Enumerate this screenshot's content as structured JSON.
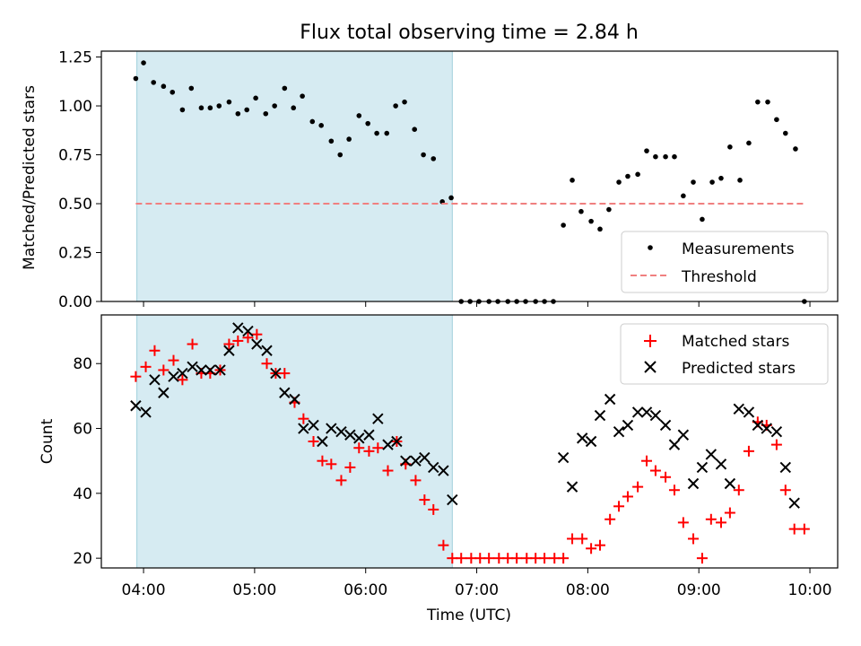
{
  "chart_data": {
    "type": "scatter",
    "title": "Flux total observing time = 2.84 h",
    "xlabel": "Time (UTC)",
    "x_tick_labels": [
      "04:00",
      "05:00",
      "06:00",
      "07:00",
      "08:00",
      "09:00",
      "10:00"
    ],
    "x_tick_values": [
      4.0,
      5.0,
      6.0,
      7.0,
      8.0,
      9.0,
      10.0
    ],
    "xlim": [
      3.62,
      10.25
    ],
    "shaded_interval": [
      3.94,
      6.78
    ],
    "shaded_color": "#add8e6",
    "top": {
      "ylabel": "Matched/Predicted stars",
      "ylim": [
        0.0,
        1.28
      ],
      "y_tick_labels": [
        "0.00",
        "0.25",
        "0.50",
        "0.75",
        "1.00",
        "1.25"
      ],
      "y_tick_values": [
        0.0,
        0.25,
        0.5,
        0.75,
        1.0,
        1.25
      ],
      "legend": {
        "position": "lower right",
        "entries": [
          "Measurements",
          "Threshold"
        ]
      },
      "series": [
        {
          "name": "Measurements",
          "color": "#000000",
          "marker": "dot",
          "points": [
            [
              3.93,
              1.14
            ],
            [
              4.0,
              1.22
            ],
            [
              4.09,
              1.12
            ],
            [
              4.18,
              1.1
            ],
            [
              4.26,
              1.07
            ],
            [
              4.35,
              0.98
            ],
            [
              4.43,
              1.09
            ],
            [
              4.52,
              0.99
            ],
            [
              4.6,
              0.99
            ],
            [
              4.68,
              1.0
            ],
            [
              4.77,
              1.02
            ],
            [
              4.85,
              0.96
            ],
            [
              4.93,
              0.98
            ],
            [
              5.01,
              1.04
            ],
            [
              5.1,
              0.96
            ],
            [
              5.18,
              1.0
            ],
            [
              5.27,
              1.09
            ],
            [
              5.35,
              0.99
            ],
            [
              5.43,
              1.05
            ],
            [
              5.52,
              0.92
            ],
            [
              5.6,
              0.9
            ],
            [
              5.69,
              0.82
            ],
            [
              5.77,
              0.75
            ],
            [
              5.85,
              0.83
            ],
            [
              5.94,
              0.95
            ],
            [
              6.02,
              0.91
            ],
            [
              6.1,
              0.86
            ],
            [
              6.19,
              0.86
            ],
            [
              6.27,
              1.0
            ],
            [
              6.35,
              1.02
            ],
            [
              6.44,
              0.88
            ],
            [
              6.52,
              0.75
            ],
            [
              6.61,
              0.73
            ],
            [
              6.69,
              0.51
            ],
            [
              6.77,
              0.53
            ],
            [
              6.86,
              0.0
            ],
            [
              6.94,
              0.0
            ],
            [
              7.02,
              0.0
            ],
            [
              7.11,
              0.0
            ],
            [
              7.19,
              0.0
            ],
            [
              7.28,
              0.0
            ],
            [
              7.36,
              0.0
            ],
            [
              7.44,
              0.0
            ],
            [
              7.53,
              0.0
            ],
            [
              7.61,
              0.0
            ],
            [
              7.69,
              0.0
            ],
            [
              7.78,
              0.39
            ],
            [
              7.86,
              0.62
            ],
            [
              7.94,
              0.46
            ],
            [
              8.03,
              0.41
            ],
            [
              8.11,
              0.37
            ],
            [
              8.19,
              0.47
            ],
            [
              8.28,
              0.61
            ],
            [
              8.36,
              0.64
            ],
            [
              8.45,
              0.65
            ],
            [
              8.53,
              0.77
            ],
            [
              8.61,
              0.74
            ],
            [
              8.7,
              0.74
            ],
            [
              8.78,
              0.74
            ],
            [
              8.86,
              0.54
            ],
            [
              8.95,
              0.61
            ],
            [
              9.03,
              0.42
            ],
            [
              9.12,
              0.61
            ],
            [
              9.2,
              0.63
            ],
            [
              9.28,
              0.79
            ],
            [
              9.37,
              0.62
            ],
            [
              9.45,
              0.81
            ],
            [
              9.53,
              1.02
            ],
            [
              9.62,
              1.02
            ],
            [
              9.7,
              0.93
            ],
            [
              9.78,
              0.86
            ],
            [
              9.87,
              0.78
            ],
            [
              9.95,
              0.0
            ]
          ]
        },
        {
          "name": "Threshold",
          "color": "#f08080",
          "style": "dashed",
          "x": [
            3.93,
            9.95
          ],
          "y": [
            0.5,
            0.5
          ]
        }
      ]
    },
    "bottom": {
      "ylabel": "Count",
      "ylim": [
        17.0,
        95.0
      ],
      "y_tick_labels": [
        "20",
        "40",
        "60",
        "80"
      ],
      "y_tick_values": [
        20,
        40,
        60,
        80
      ],
      "legend": {
        "position": "upper right",
        "entries": [
          "Matched stars",
          "Predicted stars"
        ]
      },
      "series": [
        {
          "name": "Matched stars",
          "color": "#ff0000",
          "marker": "plus",
          "points": [
            [
              3.93,
              76
            ],
            [
              4.02,
              79
            ],
            [
              4.1,
              84
            ],
            [
              4.18,
              78
            ],
            [
              4.27,
              81
            ],
            [
              4.35,
              75
            ],
            [
              4.44,
              86
            ],
            [
              4.52,
              77
            ],
            [
              4.6,
              77
            ],
            [
              4.69,
              78
            ],
            [
              4.77,
              86
            ],
            [
              4.85,
              87
            ],
            [
              4.94,
              88
            ],
            [
              5.02,
              89
            ],
            [
              5.11,
              80
            ],
            [
              5.19,
              77
            ],
            [
              5.27,
              77
            ],
            [
              5.36,
              68
            ],
            [
              5.44,
              63
            ],
            [
              5.53,
              56
            ],
            [
              5.61,
              50
            ],
            [
              5.69,
              49
            ],
            [
              5.78,
              44
            ],
            [
              5.86,
              48
            ],
            [
              5.94,
              54
            ],
            [
              6.03,
              53
            ],
            [
              6.11,
              54
            ],
            [
              6.2,
              47
            ],
            [
              6.28,
              56
            ],
            [
              6.36,
              49
            ],
            [
              6.45,
              44
            ],
            [
              6.53,
              38
            ],
            [
              6.61,
              35
            ],
            [
              6.7,
              24
            ],
            [
              6.78,
              20
            ],
            [
              6.86,
              20
            ],
            [
              6.95,
              20
            ],
            [
              7.03,
              20
            ],
            [
              7.11,
              20
            ],
            [
              7.2,
              20
            ],
            [
              7.28,
              20
            ],
            [
              7.36,
              20
            ],
            [
              7.45,
              20
            ],
            [
              7.53,
              20
            ],
            [
              7.61,
              20
            ],
            [
              7.7,
              20
            ],
            [
              7.78,
              20
            ],
            [
              7.86,
              26
            ],
            [
              7.95,
              26
            ],
            [
              8.03,
              23
            ],
            [
              8.11,
              24
            ],
            [
              8.2,
              32
            ],
            [
              8.28,
              36
            ],
            [
              8.36,
              39
            ],
            [
              8.45,
              42
            ],
            [
              8.53,
              50
            ],
            [
              8.61,
              47
            ],
            [
              8.7,
              45
            ],
            [
              8.78,
              41
            ],
            [
              8.86,
              31
            ],
            [
              8.95,
              26
            ],
            [
              9.03,
              20
            ],
            [
              9.11,
              32
            ],
            [
              9.2,
              31
            ],
            [
              9.28,
              34
            ],
            [
              9.36,
              41
            ],
            [
              9.45,
              53
            ],
            [
              9.53,
              62
            ],
            [
              9.61,
              61
            ],
            [
              9.7,
              55
            ],
            [
              9.78,
              41
            ],
            [
              9.86,
              29
            ],
            [
              9.95,
              29
            ]
          ]
        },
        {
          "name": "Predicted stars",
          "color": "#000000",
          "marker": "x",
          "points": [
            [
              3.93,
              67
            ],
            [
              4.02,
              65
            ],
            [
              4.1,
              75
            ],
            [
              4.18,
              71
            ],
            [
              4.27,
              76
            ],
            [
              4.35,
              77
            ],
            [
              4.44,
              79
            ],
            [
              4.52,
              78
            ],
            [
              4.6,
              78
            ],
            [
              4.69,
              78
            ],
            [
              4.77,
              84
            ],
            [
              4.85,
              91
            ],
            [
              4.94,
              90
            ],
            [
              5.02,
              86
            ],
            [
              5.11,
              84
            ],
            [
              5.19,
              77
            ],
            [
              5.27,
              71
            ],
            [
              5.36,
              69
            ],
            [
              5.44,
              60
            ],
            [
              5.53,
              61
            ],
            [
              5.61,
              56
            ],
            [
              5.69,
              60
            ],
            [
              5.78,
              59
            ],
            [
              5.86,
              58
            ],
            [
              5.94,
              57
            ],
            [
              6.03,
              58
            ],
            [
              6.11,
              63
            ],
            [
              6.2,
              55
            ],
            [
              6.28,
              56
            ],
            [
              6.36,
              50
            ],
            [
              6.45,
              50
            ],
            [
              6.53,
              51
            ],
            [
              6.61,
              48
            ],
            [
              6.7,
              47
            ],
            [
              6.78,
              38
            ],
            [
              7.78,
              51
            ],
            [
              7.86,
              42
            ],
            [
              7.95,
              57
            ],
            [
              8.03,
              56
            ],
            [
              8.11,
              64
            ],
            [
              8.2,
              69
            ],
            [
              8.28,
              59
            ],
            [
              8.36,
              61
            ],
            [
              8.45,
              65
            ],
            [
              8.53,
              65
            ],
            [
              8.61,
              64
            ],
            [
              8.7,
              61
            ],
            [
              8.78,
              55
            ],
            [
              8.86,
              58
            ],
            [
              8.95,
              43
            ],
            [
              9.03,
              48
            ],
            [
              9.11,
              52
            ],
            [
              9.2,
              49
            ],
            [
              9.28,
              43
            ],
            [
              9.36,
              66
            ],
            [
              9.45,
              65
            ],
            [
              9.53,
              61
            ],
            [
              9.61,
              60
            ],
            [
              9.7,
              59
            ],
            [
              9.78,
              48
            ],
            [
              9.86,
              37
            ]
          ]
        }
      ]
    }
  }
}
